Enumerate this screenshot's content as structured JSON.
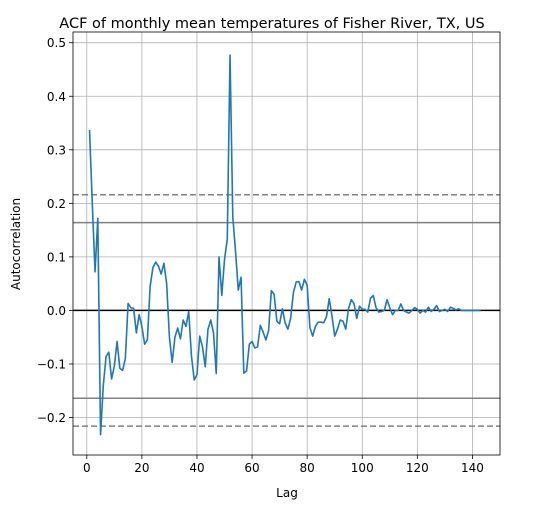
{
  "chart_data": {
    "type": "line",
    "title": "ACF of monthly mean temperatures of Fisher River, TX, US",
    "xlabel": "Lag",
    "ylabel": "Autocorrelation",
    "xlim": [
      -5,
      150
    ],
    "ylim": [
      -0.27,
      0.52
    ],
    "xticks": [
      0,
      20,
      40,
      60,
      80,
      100,
      120,
      140
    ],
    "yticks": [
      -0.2,
      -0.1,
      0.0,
      0.1,
      0.2,
      0.3,
      0.4,
      0.5
    ],
    "ytick_labels": [
      "−0.2",
      "−0.1",
      "0.0",
      "0.1",
      "0.2",
      "0.3",
      "0.4",
      "0.5"
    ],
    "grid": true,
    "series_color": "#1f77b4",
    "reference_lines": {
      "zero": 0.0,
      "solid_bounds": [
        0.164,
        -0.164
      ],
      "dashed_bounds": [
        0.216,
        -0.216
      ]
    },
    "series": [
      {
        "x": [
          1,
          2,
          3,
          4,
          5,
          6,
          7,
          8,
          9,
          10,
          11,
          12,
          13,
          14,
          15,
          16,
          17,
          18,
          19,
          20,
          21,
          22,
          23,
          24,
          25,
          26,
          27,
          28,
          29,
          30,
          31,
          32,
          33,
          34,
          35,
          36,
          37,
          38,
          39,
          40,
          41,
          42,
          43,
          44,
          45,
          46,
          47,
          48,
          49,
          50,
          51,
          52,
          53,
          54,
          55,
          56,
          57,
          58,
          59,
          60,
          61,
          62,
          63,
          64,
          65,
          66,
          67,
          68,
          69,
          70,
          71,
          72,
          73,
          74,
          75,
          76,
          77,
          78,
          79,
          80,
          81,
          82,
          83,
          84,
          85,
          86,
          87,
          88,
          89,
          90,
          91,
          92,
          93,
          94,
          95,
          96,
          97,
          98,
          99,
          100,
          101,
          102,
          103,
          104,
          105,
          106,
          107,
          108,
          109,
          110,
          111,
          112,
          113,
          114,
          115,
          116,
          117,
          118,
          119,
          120,
          121,
          122,
          123,
          124,
          125,
          126,
          127,
          128,
          129,
          130,
          131,
          132,
          133,
          134,
          135,
          136,
          137,
          138,
          139,
          140,
          141,
          142,
          143
        ],
        "values": [
          0.337,
          0.2,
          0.072,
          0.172,
          -0.232,
          -0.14,
          -0.086,
          -0.078,
          -0.128,
          -0.104,
          -0.058,
          -0.108,
          -0.112,
          -0.09,
          0.013,
          0.005,
          0.004,
          -0.042,
          -0.008,
          -0.03,
          -0.063,
          -0.055,
          0.045,
          0.08,
          0.09,
          0.083,
          0.068,
          0.088,
          0.05,
          -0.05,
          -0.097,
          -0.05,
          -0.033,
          -0.053,
          -0.018,
          -0.03,
          -0.002,
          -0.085,
          -0.13,
          -0.12,
          -0.048,
          -0.068,
          -0.105,
          -0.035,
          -0.018,
          -0.042,
          -0.118,
          0.1,
          0.028,
          0.095,
          0.133,
          0.477,
          0.175,
          0.11,
          0.038,
          0.062,
          -0.117,
          -0.113,
          -0.063,
          -0.058,
          -0.07,
          -0.068,
          -0.028,
          -0.04,
          -0.055,
          -0.038,
          0.037,
          0.03,
          -0.02,
          -0.025,
          0.003,
          -0.023,
          -0.035,
          -0.015,
          0.033,
          0.053,
          0.054,
          0.038,
          0.058,
          0.047,
          -0.032,
          -0.048,
          -0.03,
          -0.022,
          -0.022,
          -0.023,
          -0.012,
          0.022,
          -0.01,
          -0.048,
          -0.035,
          -0.018,
          -0.02,
          -0.035,
          0.003,
          0.02,
          0.013,
          -0.015,
          0.008,
          0.002,
          0.002,
          -0.003,
          0.023,
          0.028,
          0.005,
          -0.003,
          -0.002,
          0.0,
          0.02,
          0.005,
          -0.008,
          0.0,
          0.0,
          0.012,
          0.0,
          -0.003,
          -0.005,
          0.0,
          0.005,
          0.002,
          -0.005,
          0.0,
          -0.003,
          0.006,
          -0.002,
          0.002,
          0.009,
          -0.002,
          0.0,
          0.002,
          -0.002,
          0.006,
          0.004,
          0.001,
          0.003,
          0.0,
          0.0,
          0.0,
          0.0,
          0.0,
          0.0,
          0.0,
          0.0
        ]
      }
    ]
  }
}
